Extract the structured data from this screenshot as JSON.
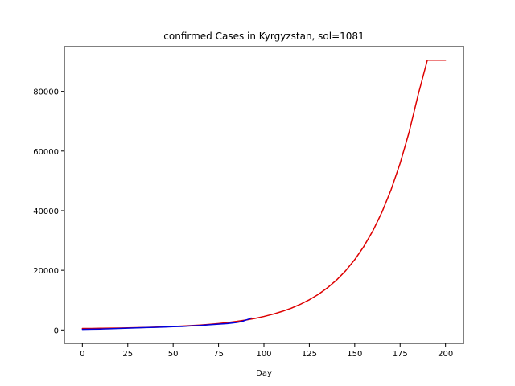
{
  "chart_data": {
    "type": "line",
    "title": "confirmed Cases in Kyrgyzstan, sol=1081",
    "xlabel": "Day",
    "ylabel": "",
    "xlim": [
      -9.9,
      209.9
    ],
    "ylim": [
      -4500,
      95000
    ],
    "xticks": [
      0,
      25,
      50,
      75,
      100,
      125,
      150,
      175,
      200
    ],
    "yticks": [
      0,
      20000,
      40000,
      60000,
      80000
    ],
    "grid": false,
    "series": [
      {
        "color": "#dd0000",
        "style": "model",
        "x": [
          0,
          5,
          10,
          15,
          20,
          25,
          30,
          35,
          40,
          45,
          50,
          55,
          60,
          65,
          70,
          75,
          80,
          85,
          90,
          95,
          100,
          105,
          110,
          115,
          120,
          125,
          130,
          135,
          140,
          145,
          150,
          155,
          160,
          165,
          170,
          175,
          180,
          185,
          190,
          195,
          200
        ],
        "y": [
          500,
          500,
          540,
          590,
          640,
          700,
          770,
          840,
          930,
          1030,
          1150,
          1290,
          1450,
          1640,
          1870,
          2150,
          2480,
          2870,
          3330,
          3870,
          4520,
          5290,
          6210,
          7290,
          8580,
          10120,
          11950,
          14140,
          16740,
          19850,
          23570,
          27980,
          33240,
          39510,
          46970,
          55850,
          66420,
          78990,
          90500,
          90500,
          90500
        ]
      },
      {
        "color": "#0000dd",
        "style": "observed",
        "x": [
          0,
          5,
          10,
          15,
          20,
          25,
          30,
          35,
          40,
          45,
          50,
          55,
          60,
          65,
          70,
          75,
          80,
          85,
          88,
          90,
          92,
          93
        ],
        "y": [
          200,
          250,
          300,
          380,
          500,
          600,
          700,
          780,
          850,
          950,
          1080,
          1180,
          1350,
          1500,
          1750,
          1950,
          2150,
          2500,
          2850,
          3300,
          3700,
          4000
        ]
      }
    ]
  }
}
